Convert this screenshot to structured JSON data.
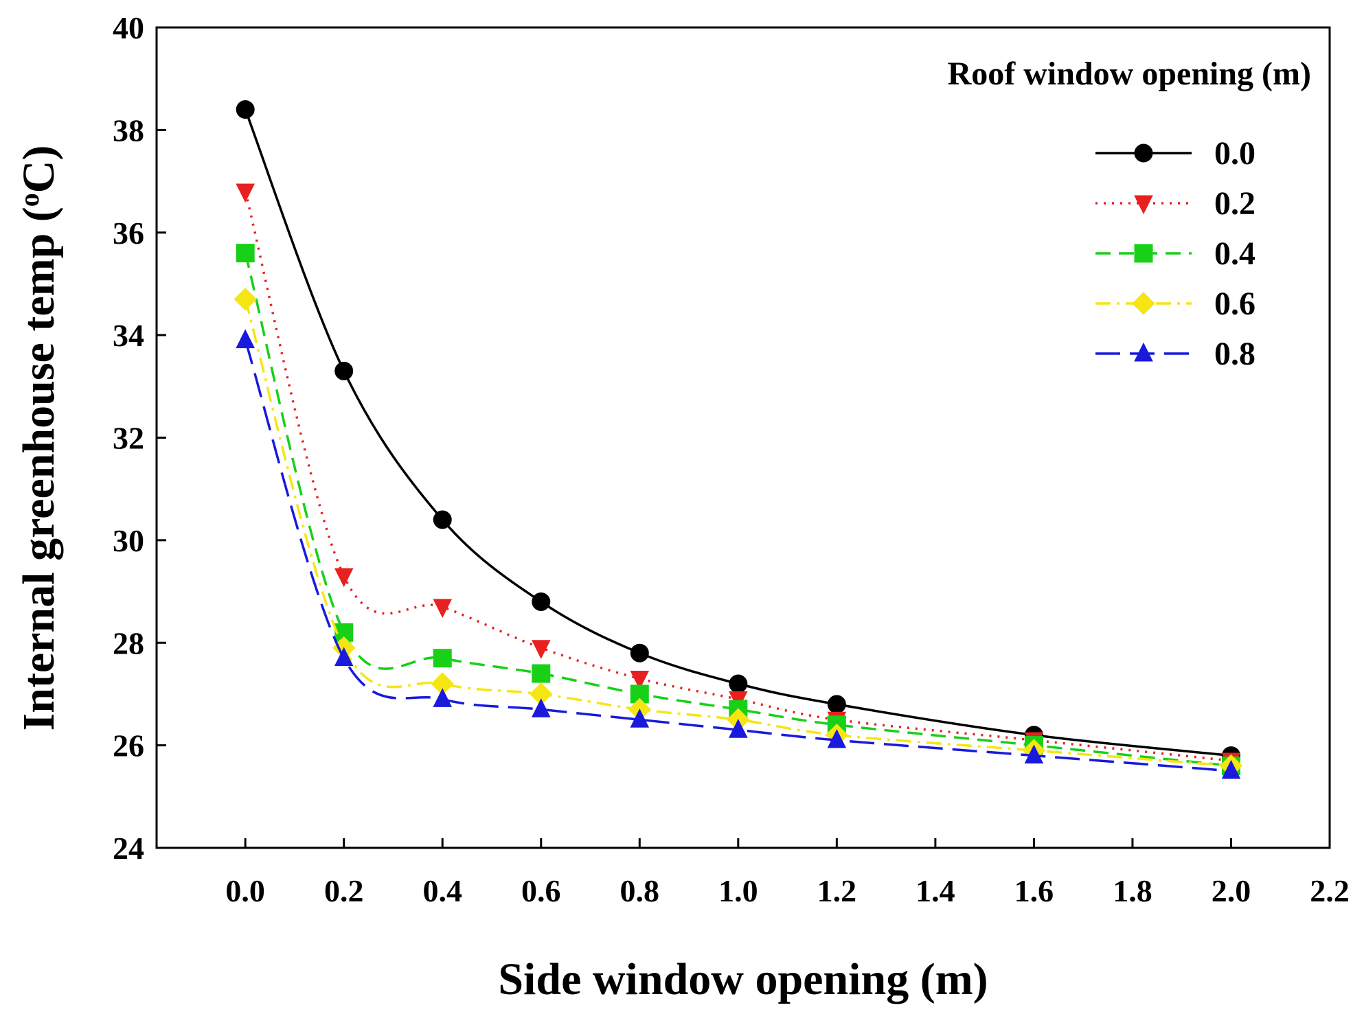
{
  "chart_data": {
    "type": "line",
    "title": "",
    "xlabel": "Side window opening (m)",
    "ylabel_main": "Internal greenhouse temp (",
    "ylabel_sup": "o",
    "ylabel_end": "C)",
    "xlim": [
      -0.18,
      2.2
    ],
    "ylim": [
      24,
      40
    ],
    "xticks": [
      "0.0",
      "0.2",
      "0.4",
      "0.6",
      "0.8",
      "1.0",
      "1.2",
      "1.4",
      "1.6",
      "1.8",
      "2.0",
      "2.2"
    ],
    "yticks": [
      "24",
      "26",
      "28",
      "30",
      "32",
      "34",
      "36",
      "38",
      "40"
    ],
    "grid": false,
    "legend_title": "Roof window opening (m)",
    "legend_position": "top-right",
    "x": [
      0.0,
      0.2,
      0.4,
      0.6,
      0.8,
      1.0,
      1.2,
      1.6,
      2.0
    ],
    "series": [
      {
        "name": "0.0",
        "color": "#000000",
        "marker": "circle",
        "dash": "solid",
        "values": [
          38.4,
          33.3,
          30.4,
          28.8,
          27.8,
          27.2,
          26.8,
          26.2,
          25.8
        ]
      },
      {
        "name": "0.2",
        "color": "#e8201f",
        "marker": "triangle-down",
        "dash": "dotted",
        "values": [
          36.8,
          29.3,
          28.7,
          27.9,
          27.3,
          26.9,
          26.5,
          26.1,
          25.7
        ]
      },
      {
        "name": "0.4",
        "color": "#18d018",
        "marker": "square",
        "dash": "dashed",
        "values": [
          35.6,
          28.2,
          27.7,
          27.4,
          27.0,
          26.7,
          26.4,
          26.0,
          25.6
        ]
      },
      {
        "name": "0.6",
        "color": "#f5e613",
        "marker": "diamond",
        "dash": "dashdot",
        "values": [
          34.7,
          27.9,
          27.2,
          27.0,
          26.7,
          26.5,
          26.2,
          25.9,
          25.6
        ]
      },
      {
        "name": "0.8",
        "color": "#1a1adc",
        "marker": "triangle-up",
        "dash": "longdash",
        "values": [
          33.9,
          27.7,
          26.9,
          26.7,
          26.5,
          26.3,
          26.1,
          25.8,
          25.5
        ]
      }
    ]
  }
}
